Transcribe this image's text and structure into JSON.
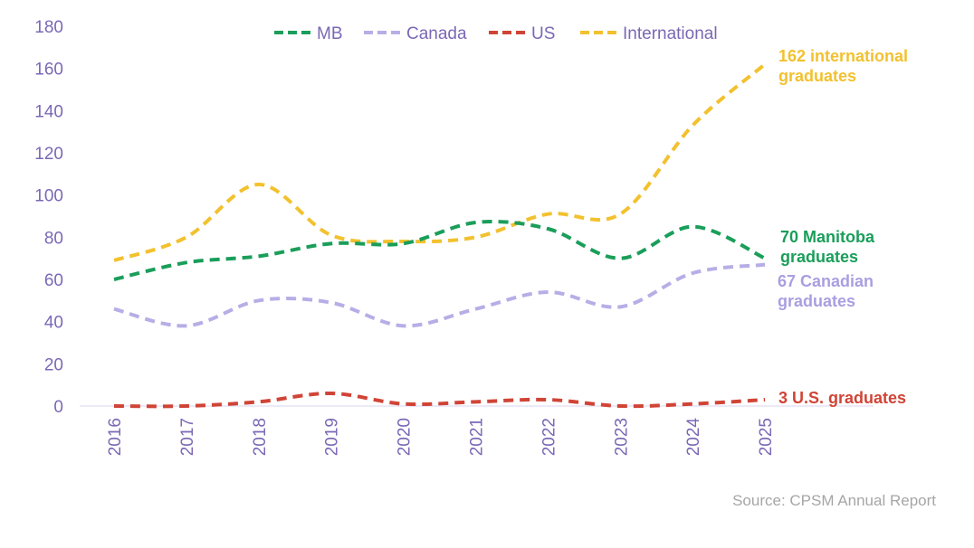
{
  "chart_data": {
    "type": "line",
    "title": "",
    "xlabel": "",
    "ylabel": "",
    "x": [
      "2016",
      "2017",
      "2018",
      "2019",
      "2020",
      "2021",
      "2022",
      "2023",
      "2024",
      "2025"
    ],
    "ylim": [
      0,
      180
    ],
    "yticks": [
      0,
      20,
      40,
      60,
      80,
      100,
      120,
      140,
      160,
      180
    ],
    "grid": false,
    "smooth": true,
    "line_style": "dashed",
    "legend_position": "top-center",
    "series": [
      {
        "name": "MB",
        "color": "#1a9e5a",
        "values": [
          60,
          68,
          71,
          77,
          77,
          87,
          84,
          70,
          85,
          70
        ]
      },
      {
        "name": "Canada",
        "color": "#b7aee6",
        "values": [
          46,
          38,
          50,
          49,
          38,
          46,
          54,
          47,
          63,
          67
        ]
      },
      {
        "name": "US",
        "color": "#d04436",
        "values": [
          0,
          0,
          2,
          6,
          1,
          2,
          3,
          0,
          1,
          3
        ]
      },
      {
        "name": "International",
        "color": "#f2c12e",
        "values": [
          69,
          80,
          105,
          81,
          78,
          80,
          91,
          91,
          133,
          162
        ]
      }
    ],
    "annotations": [
      {
        "series": "International",
        "lines": [
          "162 international",
          "graduates"
        ],
        "color": "#f2c12e"
      },
      {
        "series": "MB",
        "lines": [
          "70 Manitoba",
          "graduates"
        ],
        "color": "#1a9e5a"
      },
      {
        "series": "Canada",
        "lines": [
          "67 Canadian",
          "graduates"
        ],
        "color": "#a99fe0"
      },
      {
        "series": "US",
        "lines": [
          "3 U.S. graduates"
        ],
        "color": "#d04436"
      }
    ],
    "axis_color": "#d9d4ee",
    "tick_color": "#7b68b5"
  },
  "source": "Source: CPSM Annual Report"
}
